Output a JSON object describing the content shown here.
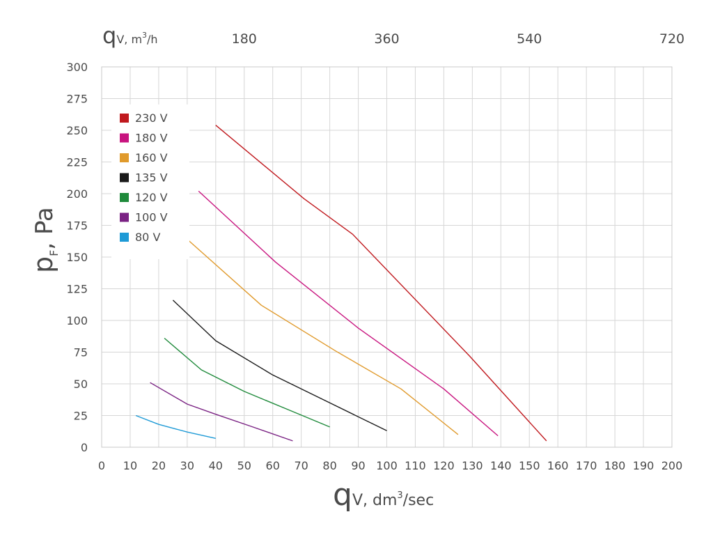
{
  "chart_data": {
    "type": "line",
    "title": "",
    "xlabel": {
      "main": "q",
      "sub": "V",
      "unit": ", dm",
      "sup": "3",
      "unit_tail": "/sec"
    },
    "ylabel": {
      "main": "p",
      "sub": "F",
      "unit": ", Pa"
    },
    "x2label": {
      "main": "q",
      "sub": "V",
      "unit": ", m",
      "sup": "3",
      "unit_tail": "/h"
    },
    "xlim": [
      0,
      200
    ],
    "ylim": [
      0,
      300
    ],
    "x2lim": [
      0,
      720
    ],
    "x_ticks": [
      0,
      10,
      20,
      30,
      40,
      50,
      60,
      70,
      80,
      90,
      100,
      110,
      120,
      130,
      140,
      150,
      160,
      170,
      180,
      190,
      200
    ],
    "y_ticks": [
      0,
      25,
      50,
      75,
      100,
      125,
      150,
      175,
      200,
      225,
      250,
      275,
      300
    ],
    "x2_ticks": [
      180,
      360,
      540,
      720
    ],
    "grid": true,
    "legend_position": "top-left",
    "series": [
      {
        "name": "230 V",
        "color": "#c0191e",
        "points": [
          [
            40,
            254
          ],
          [
            71,
            196
          ],
          [
            88,
            168
          ],
          [
            129,
            72
          ],
          [
            156,
            5
          ]
        ]
      },
      {
        "name": "180 V",
        "color": "#c8147f",
        "points": [
          [
            34,
            202
          ],
          [
            61,
            146
          ],
          [
            90,
            94
          ],
          [
            120,
            46
          ],
          [
            139,
            9
          ]
        ]
      },
      {
        "name": "160 V",
        "color": "#e09a2c",
        "points": [
          [
            30,
            164
          ],
          [
            56,
            112
          ],
          [
            82,
            76
          ],
          [
            105,
            46
          ],
          [
            125,
            10
          ]
        ]
      },
      {
        "name": "135 V",
        "color": "#1a1a1a",
        "points": [
          [
            25,
            116
          ],
          [
            40,
            84
          ],
          [
            60,
            57
          ],
          [
            80,
            35
          ],
          [
            100,
            13
          ]
        ]
      },
      {
        "name": "120 V",
        "color": "#1f8a3b",
        "points": [
          [
            22,
            86
          ],
          [
            35,
            61
          ],
          [
            50,
            44
          ],
          [
            65,
            30
          ],
          [
            80,
            16
          ]
        ]
      },
      {
        "name": "100 V",
        "color": "#7a2283",
        "points": [
          [
            17,
            51
          ],
          [
            30,
            34
          ],
          [
            40,
            26
          ],
          [
            53,
            16
          ],
          [
            67,
            5
          ]
        ]
      },
      {
        "name": "80 V",
        "color": "#1e9ad6",
        "points": [
          [
            12,
            25
          ],
          [
            20,
            18
          ],
          [
            30,
            12
          ],
          [
            40,
            7
          ]
        ]
      }
    ]
  }
}
